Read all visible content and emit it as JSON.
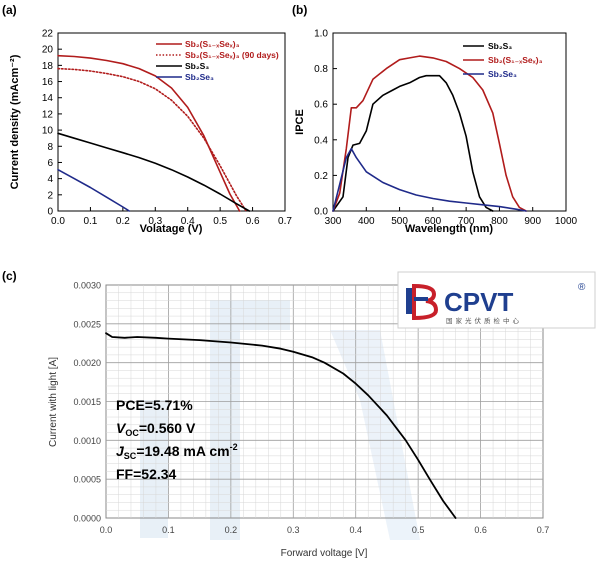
{
  "panel_labels": [
    "(a)",
    "(b)",
    "(c)"
  ],
  "colors": {
    "red": "#b11c1c",
    "black": "#000000",
    "blue": "#1f2a8a",
    "grid": "#bdbdbd",
    "watermark": "#d6e4f2"
  },
  "chart_data": [
    {
      "type": "line",
      "panel": "(a)",
      "xlabel": "Volatage (V)",
      "ylabel": "Current density (mAcm⁻²)",
      "xlim": [
        0,
        0.7
      ],
      "ylim": [
        0,
        22
      ],
      "xticks": [
        "0.0",
        "0.1",
        "0.2",
        "0.3",
        "0.4",
        "0.5",
        "0.6",
        "0.7"
      ],
      "yticks": [
        "0",
        "2",
        "4",
        "6",
        "8",
        "10",
        "12",
        "14",
        "16",
        "18",
        "20",
        "22"
      ],
      "xtick_values": [
        0,
        0.1,
        0.2,
        0.3,
        0.4,
        0.5,
        0.6,
        0.7
      ],
      "ytick_values": [
        0,
        2,
        4,
        6,
        8,
        10,
        12,
        14,
        16,
        18,
        20,
        22
      ],
      "legend_position": "top-right",
      "series": [
        {
          "name": "Sb₂(S₁₋ₓSeₓ)₃",
          "color": "#b11c1c",
          "dash": "solid",
          "x": [
            0,
            0.05,
            0.1,
            0.15,
            0.2,
            0.25,
            0.3,
            0.35,
            0.4,
            0.45,
            0.5,
            0.53,
            0.56
          ],
          "y": [
            19.2,
            19.1,
            18.9,
            18.6,
            18.2,
            17.6,
            16.7,
            15.2,
            12.8,
            9.3,
            4.8,
            2.1,
            0
          ]
        },
        {
          "name": "Sb₂(S₁₋ₓSeₓ)₃ (90 days)",
          "color": "#b11c1c",
          "dash": "dotted",
          "x": [
            0,
            0.05,
            0.1,
            0.15,
            0.2,
            0.25,
            0.3,
            0.35,
            0.4,
            0.45,
            0.5,
            0.55,
            0.58
          ],
          "y": [
            17.6,
            17.5,
            17.3,
            17.0,
            16.6,
            16.0,
            15.1,
            13.7,
            11.7,
            9.0,
            5.6,
            1.9,
            0
          ]
        },
        {
          "name": "Sb₂S₃",
          "color": "#000000",
          "dash": "solid",
          "x": [
            0,
            0.05,
            0.1,
            0.15,
            0.2,
            0.25,
            0.3,
            0.35,
            0.4,
            0.45,
            0.5,
            0.55,
            0.59
          ],
          "y": [
            9.6,
            9.0,
            8.4,
            7.8,
            7.2,
            6.6,
            5.9,
            5.1,
            4.2,
            3.2,
            2.1,
            0.9,
            0
          ]
        },
        {
          "name": "Sb₂Se₃",
          "color": "#1f2a8a",
          "dash": "solid",
          "x": [
            0,
            0.05,
            0.1,
            0.15,
            0.2,
            0.22
          ],
          "y": [
            5.1,
            4.0,
            2.9,
            1.7,
            0.5,
            0
          ]
        }
      ]
    },
    {
      "type": "line",
      "panel": "(b)",
      "xlabel": "Wavelength (nm)",
      "ylabel": "IPCE",
      "xlim": [
        300,
        1000
      ],
      "ylim": [
        0,
        1.0
      ],
      "xticks": [
        "300",
        "400",
        "500",
        "600",
        "700",
        "800",
        "900",
        "1000"
      ],
      "yticks": [
        "0.0",
        "0.2",
        "0.4",
        "0.6",
        "0.8",
        "1.0"
      ],
      "xtick_values": [
        300,
        400,
        500,
        600,
        700,
        800,
        900,
        1000
      ],
      "ytick_values": [
        0,
        0.2,
        0.4,
        0.6,
        0.8,
        1.0
      ],
      "legend_position": "top-left",
      "series": [
        {
          "name": "Sb₂S₃",
          "color": "#000000",
          "dash": "solid",
          "x": [
            300,
            330,
            345,
            360,
            380,
            400,
            420,
            450,
            480,
            500,
            530,
            560,
            580,
            600,
            620,
            640,
            660,
            680,
            700,
            720,
            740,
            760,
            780
          ],
          "y": [
            0.0,
            0.08,
            0.3,
            0.37,
            0.38,
            0.45,
            0.6,
            0.65,
            0.68,
            0.7,
            0.72,
            0.75,
            0.76,
            0.76,
            0.76,
            0.72,
            0.65,
            0.55,
            0.42,
            0.22,
            0.08,
            0.02,
            0.0
          ]
        },
        {
          "name": "Sb₂(S₁₋ₓSeₓ)₃",
          "color": "#b11c1c",
          "dash": "solid",
          "x": [
            300,
            320,
            340,
            355,
            370,
            390,
            420,
            460,
            500,
            530,
            560,
            600,
            640,
            680,
            720,
            750,
            780,
            800,
            820,
            840,
            860,
            880
          ],
          "y": [
            0.0,
            0.1,
            0.35,
            0.58,
            0.58,
            0.62,
            0.74,
            0.8,
            0.85,
            0.86,
            0.87,
            0.86,
            0.84,
            0.8,
            0.75,
            0.68,
            0.55,
            0.38,
            0.2,
            0.08,
            0.02,
            0.0
          ]
        },
        {
          "name": "Sb₂Se₃",
          "color": "#1f2a8a",
          "dash": "solid",
          "x": [
            300,
            320,
            340,
            355,
            370,
            400,
            450,
            500,
            550,
            600,
            650,
            700,
            750,
            800,
            850,
            880
          ],
          "y": [
            0.0,
            0.15,
            0.3,
            0.35,
            0.3,
            0.22,
            0.16,
            0.12,
            0.09,
            0.07,
            0.055,
            0.045,
            0.035,
            0.025,
            0.01,
            0.0
          ]
        }
      ]
    },
    {
      "type": "line",
      "panel": "(c)",
      "xlabel": "Forward voltage [V]",
      "ylabel": "Current with light [A]",
      "xlim": [
        0,
        0.7
      ],
      "ylim": [
        0,
        0.003
      ],
      "xticks": [
        "0.0",
        "0.1",
        "0.2",
        "0.3",
        "0.4",
        "0.5",
        "0.6",
        "0.7"
      ],
      "yticks": [
        "0.0000",
        "0.0005",
        "0.0010",
        "0.0015",
        "0.0020",
        "0.0025",
        "0.0030"
      ],
      "xtick_values": [
        0,
        0.1,
        0.2,
        0.3,
        0.4,
        0.5,
        0.6,
        0.7
      ],
      "ytick_values": [
        0,
        0.0005,
        0.001,
        0.0015,
        0.002,
        0.0025,
        0.003
      ],
      "series": [
        {
          "name": "",
          "color": "#000000",
          "dash": "solid",
          "x": [
            0.0,
            0.01,
            0.03,
            0.05,
            0.08,
            0.1,
            0.15,
            0.2,
            0.25,
            0.28,
            0.3,
            0.33,
            0.35,
            0.38,
            0.4,
            0.42,
            0.45,
            0.48,
            0.5,
            0.52,
            0.54,
            0.56
          ],
          "y": [
            0.00238,
            0.00233,
            0.00232,
            0.00233,
            0.00232,
            0.00231,
            0.00229,
            0.00226,
            0.00222,
            0.00218,
            0.00214,
            0.00207,
            0.002,
            0.00186,
            0.00173,
            0.00158,
            0.00132,
            0.001,
            0.00075,
            0.00048,
            0.00022,
            0.0
          ]
        }
      ],
      "metrics": {
        "pce": "PCE=5.71%",
        "voc_sym": "V",
        "voc_sub": "OC",
        "voc_val": "=0.560 V",
        "jsc_sym": "J",
        "jsc_sub": "SC",
        "jsc_val": "=19.48 mA cm",
        "jsc_sup": "-2",
        "ff": "FF=52.34"
      },
      "logo": {
        "text": "CPVT",
        "registered": "®",
        "subtitle": "国家光伏质检中心"
      }
    }
  ]
}
